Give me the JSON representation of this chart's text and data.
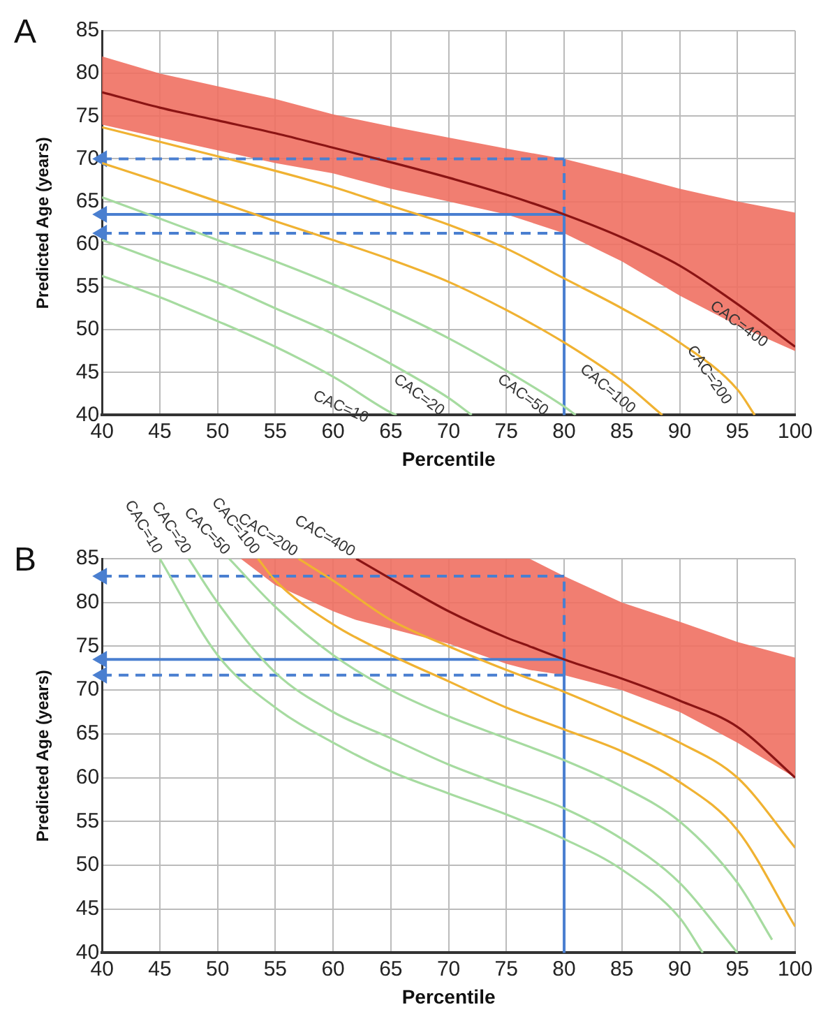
{
  "chart_data": [
    {
      "type": "line",
      "title": "A",
      "xlabel": "Percentile",
      "ylabel": "Predicted Age (years)",
      "xlim": [
        40,
        100
      ],
      "ylim": [
        40,
        85
      ],
      "xticks": [
        40,
        45,
        50,
        55,
        60,
        65,
        70,
        75,
        80,
        85,
        90,
        95,
        100
      ],
      "yticks": [
        40,
        45,
        50,
        55,
        60,
        65,
        70,
        75,
        80,
        85
      ],
      "grid": true,
      "legend": false,
      "marker": "none",
      "series": [
        {
          "name": "CAC=10",
          "color": "#a6dba0",
          "x": [
            40,
            45,
            50,
            55,
            60,
            65,
            65.5
          ],
          "values": [
            56.3,
            53.8,
            51,
            48,
            44.5,
            40.3,
            40
          ]
        },
        {
          "name": "CAC=20",
          "color": "#a6dba0",
          "x": [
            40,
            45,
            50,
            55,
            60,
            65,
            70,
            72
          ],
          "values": [
            60.5,
            58,
            55.5,
            52.5,
            49.5,
            46,
            42,
            40
          ]
        },
        {
          "name": "CAC=50",
          "color": "#a6dba0",
          "x": [
            40,
            45,
            50,
            55,
            60,
            65,
            70,
            75,
            80,
            81
          ],
          "values": [
            65.5,
            63,
            60.5,
            58,
            55.3,
            52.3,
            49,
            45.2,
            41,
            40
          ]
        },
        {
          "name": "CAC=100",
          "color": "#f0b232",
          "x": [
            40,
            45,
            50,
            55,
            60,
            65,
            70,
            75,
            80,
            85,
            88.5
          ],
          "values": [
            69.5,
            67.3,
            65,
            62.7,
            60.5,
            58.2,
            55.6,
            52.3,
            48.5,
            44,
            40
          ]
        },
        {
          "name": "CAC=200",
          "color": "#f0b232",
          "x": [
            40,
            45,
            50,
            55,
            60,
            65,
            70,
            75,
            80,
            85,
            90,
            95,
            96.5
          ],
          "values": [
            73.7,
            72,
            70.3,
            68.6,
            66.7,
            64.5,
            62.3,
            59.5,
            56,
            52.5,
            48.5,
            43,
            40
          ]
        },
        {
          "name": "CAC=400",
          "color": "#8b1414",
          "x": [
            40,
            45,
            50,
            55,
            60,
            65,
            70,
            75,
            80,
            85,
            90,
            95,
            100
          ],
          "values": [
            77.8,
            76,
            74.5,
            73,
            71.3,
            69.6,
            67.8,
            65.8,
            63.5,
            60.8,
            57.5,
            53,
            48
          ],
          "upper": [
            82,
            80,
            78.5,
            77,
            75.2,
            73.8,
            72.5,
            71.2,
            70,
            68.3,
            66.5,
            65,
            63.7
          ],
          "lower": [
            74,
            72.5,
            71,
            69.5,
            68.3,
            66.5,
            65,
            63.5,
            61.3,
            58,
            54,
            50.5,
            47.5
          ]
        },
        {
          "color": "#4a7fd0",
          "line_style": "solid",
          "x": [
            80,
            80
          ],
          "values": [
            40,
            63.5
          ]
        },
        {
          "color": "#4a7fd0",
          "line_style": "solid",
          "marker": "triangle",
          "x": [
            80,
            40
          ],
          "values": [
            63.5,
            63.5
          ]
        },
        {
          "color": "#4a7fd0",
          "line_style": "dashed",
          "x": [
            80,
            80
          ],
          "values": [
            61.3,
            70
          ]
        },
        {
          "color": "#4a7fd0",
          "line_style": "dashed",
          "marker": "triangle",
          "x": [
            80,
            40
          ],
          "values": [
            70,
            70
          ]
        },
        {
          "color": "#4a7fd0",
          "line_style": "dashed",
          "marker": "triangle",
          "x": [
            80,
            40
          ],
          "values": [
            61.3,
            61.3
          ]
        }
      ]
    },
    {
      "type": "line",
      "title": "B",
      "xlabel": "Percentile",
      "ylabel": "Predicted Age (years)",
      "xlim": [
        40,
        100
      ],
      "ylim": [
        40,
        85
      ],
      "xticks": [
        40,
        45,
        50,
        55,
        60,
        65,
        70,
        75,
        80,
        85,
        90,
        95,
        100
      ],
      "yticks": [
        40,
        45,
        50,
        55,
        60,
        65,
        70,
        75,
        80,
        85
      ],
      "grid": true,
      "legend": false,
      "marker": "none",
      "series": [
        {
          "name": "CAC=10",
          "color": "#a6dba0",
          "x": [
            45,
            50,
            55,
            60,
            65,
            70,
            75,
            80,
            85,
            90,
            92
          ],
          "values": [
            85,
            74,
            68,
            64,
            60.7,
            58.2,
            55.8,
            53,
            49.5,
            44,
            40
          ]
        },
        {
          "name": "CAC=20",
          "color": "#a6dba0",
          "x": [
            47.5,
            50,
            55,
            60,
            65,
            70,
            75,
            80,
            85,
            90,
            95
          ],
          "values": [
            85,
            80,
            72,
            67.5,
            64.5,
            61.5,
            59,
            56.5,
            53,
            48,
            40
          ]
        },
        {
          "name": "CAC=50",
          "color": "#a6dba0",
          "x": [
            51,
            55,
            60,
            65,
            70,
            75,
            80,
            85,
            90,
            95,
            98
          ],
          "values": [
            85,
            79.5,
            74,
            70,
            67,
            64.5,
            62,
            59,
            55,
            48,
            41.5
          ]
        },
        {
          "name": "CAC=100",
          "color": "#f0b232",
          "x": [
            53.5,
            55,
            60,
            65,
            70,
            75,
            80,
            85,
            90,
            95,
            100
          ],
          "values": [
            85,
            82.5,
            77.5,
            74,
            71,
            68,
            65.5,
            63,
            59.5,
            54,
            43
          ]
        },
        {
          "name": "CAC=200",
          "color": "#f0b232",
          "x": [
            57,
            60,
            65,
            70,
            75,
            80,
            85,
            90,
            95,
            100
          ],
          "values": [
            85,
            82.5,
            78,
            75,
            72.3,
            69.8,
            67,
            64,
            60,
            52
          ]
        },
        {
          "name": "CAC=400",
          "color": "#8b1414",
          "x": [
            52,
            55,
            60,
            62,
            65,
            70,
            75,
            77,
            80,
            85,
            90,
            95,
            100
          ],
          "values": [
            null,
            null,
            null,
            85,
            82.7,
            79,
            76,
            75,
            73.5,
            71.3,
            68.8,
            65.8,
            60
          ],
          "upper": [
            85,
            85,
            85,
            85,
            85,
            85,
            85,
            85,
            83,
            80,
            77.8,
            75.5,
            73.7
          ],
          "lower": [
            85,
            82,
            79,
            78,
            77,
            75.3,
            73,
            72.3,
            71.7,
            70,
            67.5,
            64,
            60
          ]
        },
        {
          "color": "#4a7fd0",
          "line_style": "solid",
          "x": [
            80,
            80
          ],
          "values": [
            40,
            73.5
          ]
        },
        {
          "color": "#4a7fd0",
          "line_style": "solid",
          "marker": "triangle",
          "x": [
            80,
            40
          ],
          "values": [
            73.5,
            73.5
          ]
        },
        {
          "color": "#4a7fd0",
          "line_style": "dashed",
          "x": [
            80,
            80
          ],
          "values": [
            71.7,
            83
          ]
        },
        {
          "color": "#4a7fd0",
          "line_style": "dashed",
          "marker": "triangle",
          "x": [
            80,
            40
          ],
          "values": [
            83,
            83
          ]
        },
        {
          "color": "#4a7fd0",
          "line_style": "dashed",
          "marker": "triangle",
          "x": [
            80,
            40
          ],
          "values": [
            71.7,
            71.7
          ]
        }
      ]
    }
  ]
}
